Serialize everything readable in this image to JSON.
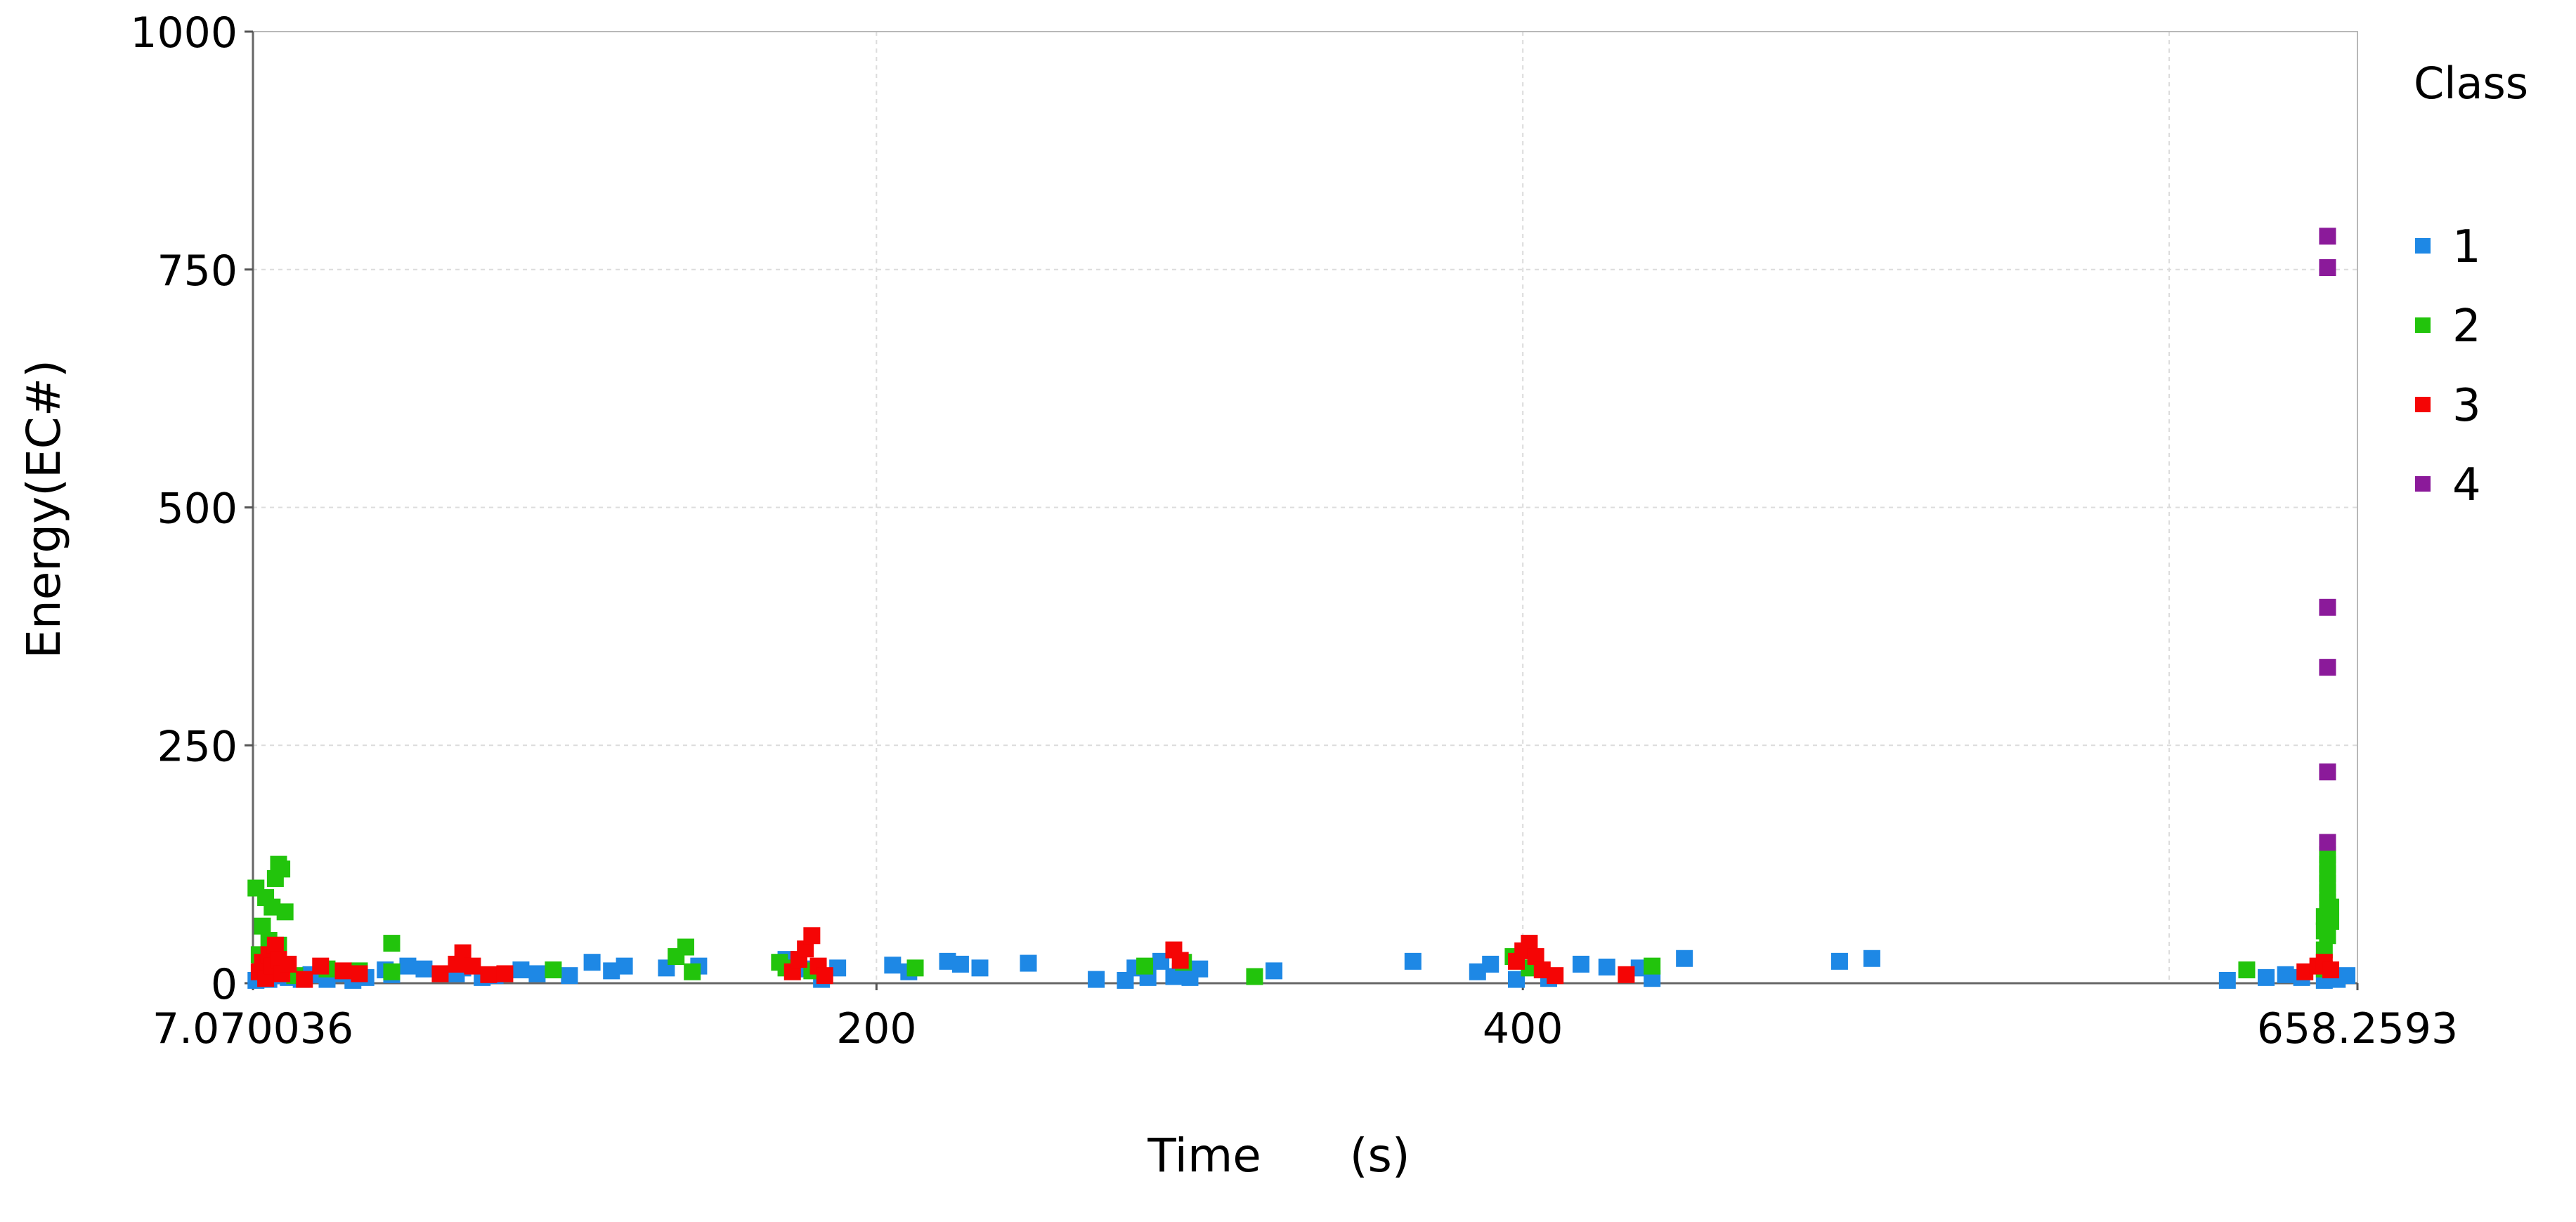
{
  "chart_data": {
    "type": "scatter",
    "xlabel": "Time      (s)",
    "ylabel": "Energy(EC#)",
    "xlim": [
      7.070036,
      658.2593
    ],
    "ylim": [
      0,
      1000
    ],
    "x_ticks": [
      7.070036,
      200,
      400,
      658.2593
    ],
    "x_tick_labels": [
      "7.070036",
      "200",
      "400",
      "658.2593"
    ],
    "y_ticks": [
      0,
      250,
      500,
      750,
      1000
    ],
    "y_tick_labels": [
      "0",
      "250",
      "500",
      "750",
      "1000"
    ],
    "x_grid": [
      200,
      400,
      600
    ],
    "y_grid": [
      250,
      500,
      750
    ],
    "grid": true,
    "legend": {
      "title": "Class",
      "position": "right"
    },
    "series": [
      {
        "name": "1",
        "color": "#1e88e5",
        "points": [
          [
            8,
            3
          ],
          [
            10,
            6
          ],
          [
            12,
            4
          ],
          [
            15,
            8
          ],
          [
            18,
            6
          ],
          [
            22,
            4
          ],
          [
            25,
            9
          ],
          [
            30,
            4
          ],
          [
            35,
            10
          ],
          [
            38,
            3
          ],
          [
            42,
            6
          ],
          [
            48,
            14
          ],
          [
            50,
            9
          ],
          [
            55,
            18
          ],
          [
            60,
            15
          ],
          [
            70,
            10
          ],
          [
            72,
            16
          ],
          [
            78,
            6
          ],
          [
            82,
            8
          ],
          [
            90,
            14
          ],
          [
            95,
            10
          ],
          [
            105,
            8
          ],
          [
            112,
            22
          ],
          [
            118,
            13
          ],
          [
            122,
            18
          ],
          [
            135,
            16
          ],
          [
            145,
            18
          ],
          [
            172,
            25
          ],
          [
            178,
            15
          ],
          [
            183,
            4
          ],
          [
            188,
            16
          ],
          [
            205,
            19
          ],
          [
            210,
            12
          ],
          [
            222,
            23
          ],
          [
            226,
            20
          ],
          [
            232,
            16
          ],
          [
            247,
            21
          ],
          [
            268,
            4
          ],
          [
            277,
            3
          ],
          [
            280,
            16
          ],
          [
            284,
            6
          ],
          [
            288,
            23
          ],
          [
            292,
            7
          ],
          [
            294,
            12
          ],
          [
            297,
            6
          ],
          [
            300,
            15
          ],
          [
            323,
            13
          ],
          [
            366,
            23
          ],
          [
            386,
            12
          ],
          [
            390,
            20
          ],
          [
            398,
            4
          ],
          [
            408,
            5
          ],
          [
            418,
            20
          ],
          [
            426,
            17
          ],
          [
            436,
            16
          ],
          [
            440,
            5
          ],
          [
            450,
            26
          ],
          [
            498,
            23
          ],
          [
            508,
            26
          ],
          [
            618,
            3
          ],
          [
            630,
            6
          ],
          [
            636,
            9
          ],
          [
            641,
            6
          ],
          [
            648,
            3
          ],
          [
            652,
            4
          ],
          [
            655,
            8
          ]
        ]
      },
      {
        "name": "2",
        "color": "#22c40c",
        "points": [
          [
            8,
            100
          ],
          [
            9,
            30
          ],
          [
            10,
            60
          ],
          [
            11,
            90
          ],
          [
            12,
            45
          ],
          [
            13,
            80
          ],
          [
            14,
            110
          ],
          [
            15,
            125
          ],
          [
            16,
            120
          ],
          [
            17,
            75
          ],
          [
            15,
            40
          ],
          [
            20,
            8
          ],
          [
            30,
            15
          ],
          [
            40,
            13
          ],
          [
            50,
            12
          ],
          [
            50,
            42
          ],
          [
            100,
            14
          ],
          [
            138,
            28
          ],
          [
            141,
            38
          ],
          [
            143,
            12
          ],
          [
            170,
            22
          ],
          [
            172,
            16
          ],
          [
            180,
            13
          ],
          [
            212,
            16
          ],
          [
            283,
            18
          ],
          [
            295,
            22
          ],
          [
            317,
            7
          ],
          [
            397,
            28
          ],
          [
            402,
            16
          ],
          [
            440,
            18
          ],
          [
            624,
            14
          ],
          [
            648,
            15
          ],
          [
            648,
            35
          ],
          [
            648,
            55
          ],
          [
            648,
            70
          ],
          [
            649,
            85
          ],
          [
            649,
            95
          ],
          [
            649,
            105
          ],
          [
            649,
            115
          ],
          [
            649,
            125
          ],
          [
            649,
            135
          ],
          [
            649,
            50
          ],
          [
            650,
            65
          ],
          [
            650,
            80
          ]
        ]
      },
      {
        "name": "3",
        "color": "#f50505",
        "points": [
          [
            9,
            12
          ],
          [
            10,
            22
          ],
          [
            11,
            5
          ],
          [
            12,
            30
          ],
          [
            13,
            18
          ],
          [
            14,
            40
          ],
          [
            15,
            25
          ],
          [
            16,
            10
          ],
          [
            18,
            20
          ],
          [
            23,
            4
          ],
          [
            28,
            18
          ],
          [
            35,
            13
          ],
          [
            40,
            10
          ],
          [
            65,
            10
          ],
          [
            70,
            20
          ],
          [
            72,
            32
          ],
          [
            75,
            18
          ],
          [
            80,
            9
          ],
          [
            85,
            10
          ],
          [
            174,
            12
          ],
          [
            176,
            25
          ],
          [
            178,
            36
          ],
          [
            180,
            50
          ],
          [
            182,
            18
          ],
          [
            184,
            8
          ],
          [
            292,
            35
          ],
          [
            294,
            24
          ],
          [
            398,
            23
          ],
          [
            400,
            34
          ],
          [
            402,
            42
          ],
          [
            404,
            28
          ],
          [
            406,
            14
          ],
          [
            410,
            8
          ],
          [
            432,
            9
          ],
          [
            642,
            12
          ],
          [
            646,
            18
          ],
          [
            648,
            22
          ],
          [
            650,
            14
          ]
        ]
      },
      {
        "name": "4",
        "color": "#8b1a9a",
        "points": [
          [
            649,
            785
          ],
          [
            649,
            752
          ],
          [
            649,
            395
          ],
          [
            649,
            332
          ],
          [
            649,
            222
          ],
          [
            649,
            148
          ]
        ]
      }
    ]
  }
}
